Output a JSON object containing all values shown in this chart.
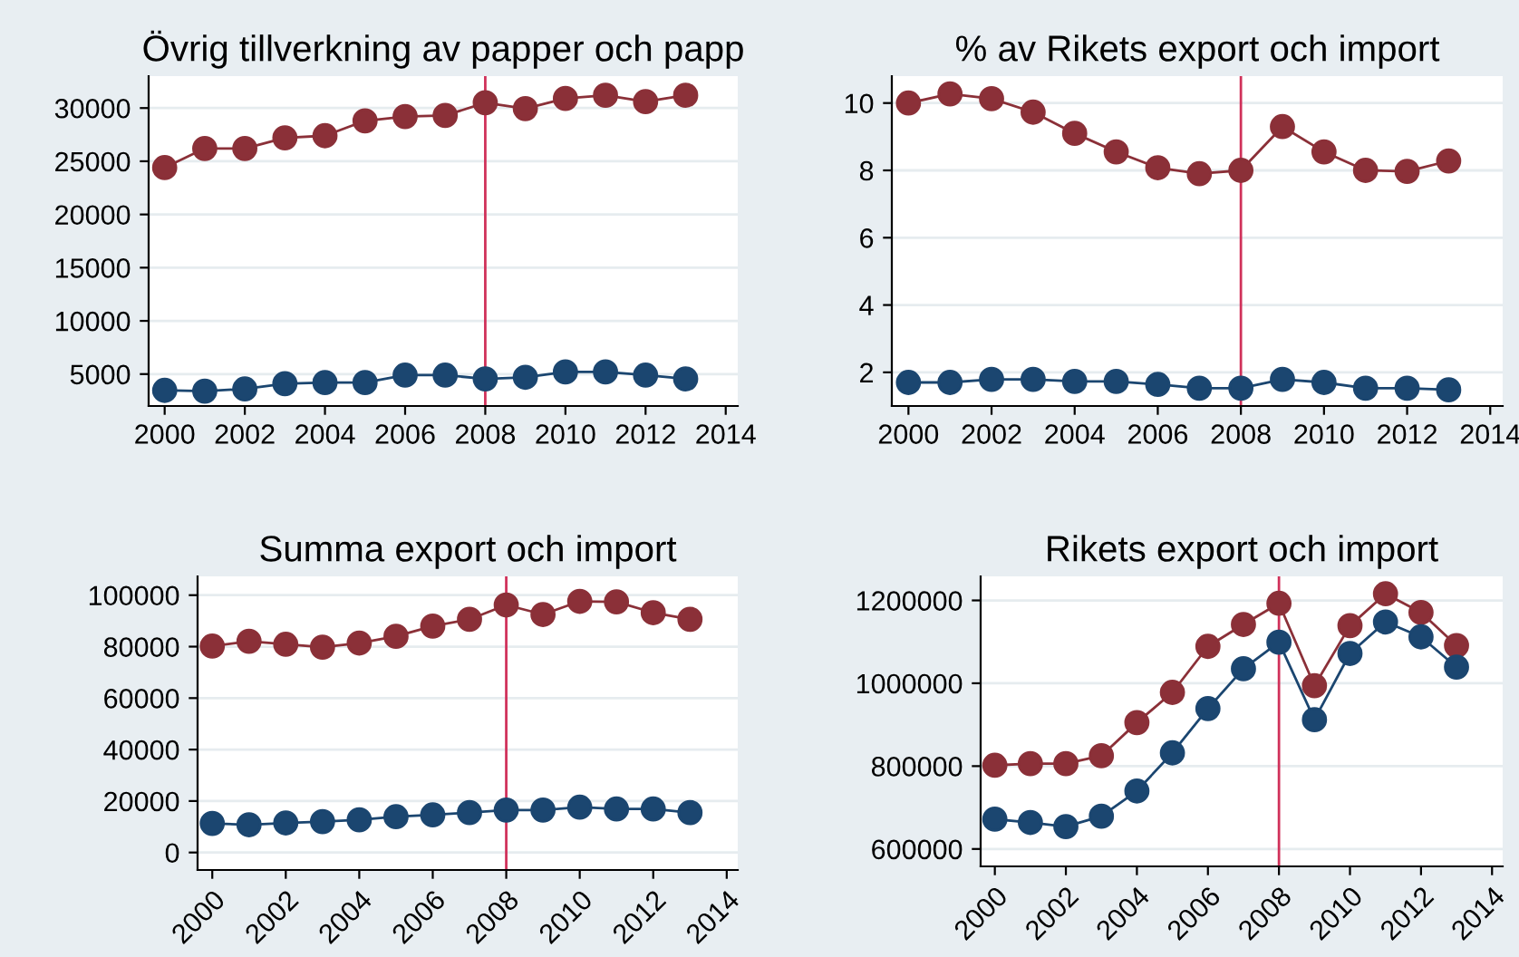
{
  "chart_data": [
    {
      "type": "line",
      "title": "Övrig tillverkning av papper och papp",
      "x": [
        2000,
        2001,
        2002,
        2003,
        2004,
        2005,
        2006,
        2007,
        2008,
        2009,
        2010,
        2011,
        2012,
        2013
      ],
      "series": [
        {
          "color": "#8b3038",
          "values": [
            24400,
            26200,
            26200,
            27200,
            27400,
            28800,
            29200,
            29300,
            30500,
            29950,
            30900,
            31200,
            30600,
            31200
          ]
        },
        {
          "color": "#1b4670",
          "values": [
            3470,
            3400,
            3600,
            4100,
            4200,
            4200,
            4900,
            4900,
            4550,
            4700,
            5200,
            5200,
            4900,
            4550
          ]
        }
      ],
      "xlim": [
        1999.6,
        2014.3
      ],
      "xticks": [
        2000,
        2002,
        2004,
        2006,
        2008,
        2010,
        2012,
        2014
      ],
      "ylim": [
        2000,
        33000
      ],
      "yticks": [
        5000,
        10000,
        15000,
        20000,
        25000,
        30000
      ],
      "ref_lines": [
        {
          "axis": "x",
          "value": 2008,
          "color": "#d0315a"
        }
      ],
      "grid": "y",
      "marker": "circle",
      "line_style": "solid",
      "legend": false
    },
    {
      "type": "line",
      "title": "% av Rikets export och import",
      "x": [
        2000,
        2001,
        2002,
        2003,
        2004,
        2005,
        2006,
        2007,
        2008,
        2009,
        2010,
        2011,
        2012,
        2013
      ],
      "series": [
        {
          "color": "#8b3038",
          "values": [
            10.0,
            10.27,
            10.13,
            9.73,
            9.1,
            8.55,
            8.08,
            7.9,
            8.0,
            9.3,
            8.55,
            8.0,
            7.97,
            8.28
          ]
        },
        {
          "color": "#1b4670",
          "values": [
            1.7,
            1.7,
            1.79,
            1.79,
            1.73,
            1.73,
            1.64,
            1.53,
            1.53,
            1.79,
            1.7,
            1.53,
            1.53,
            1.48
          ]
        }
      ],
      "xlim": [
        1999.6,
        2014.3
      ],
      "xticks": [
        2000,
        2002,
        2004,
        2006,
        2008,
        2010,
        2012,
        2014
      ],
      "ylim": [
        1.0,
        10.8
      ],
      "yticks": [
        2,
        4,
        6,
        8,
        10
      ],
      "ref_lines": [
        {
          "axis": "x",
          "value": 2008,
          "color": "#d0315a"
        }
      ],
      "grid": "y",
      "marker": "circle",
      "line_style": "solid",
      "legend": false
    },
    {
      "type": "line",
      "title": "Summa export och import",
      "x": [
        2000,
        2001,
        2002,
        2003,
        2004,
        2005,
        2006,
        2007,
        2008,
        2009,
        2010,
        2011,
        2012,
        2013
      ],
      "series": [
        {
          "color": "#8b3038",
          "values": [
            80200,
            82100,
            80900,
            79800,
            81400,
            84000,
            88000,
            90600,
            96200,
            92500,
            97600,
            97400,
            93200,
            90600
          ]
        },
        {
          "color": "#1b4670",
          "values": [
            11300,
            10800,
            11500,
            12000,
            12700,
            13900,
            14600,
            15500,
            16500,
            16500,
            17600,
            16900,
            16900,
            15500
          ]
        }
      ],
      "xlim": [
        1999.6,
        2014.3
      ],
      "xticks": [
        2000,
        2002,
        2004,
        2006,
        2008,
        2010,
        2012,
        2014
      ],
      "ylim": [
        -6800,
        107300
      ],
      "yticks": [
        0,
        20000,
        40000,
        60000,
        80000,
        100000
      ],
      "ref_lines": [
        {
          "axis": "x",
          "value": 2008,
          "color": "#d0315a"
        }
      ],
      "grid": "y",
      "marker": "circle",
      "line_style": "solid",
      "legend": false
    },
    {
      "type": "line",
      "title": "Rikets export och import",
      "x": [
        2000,
        2001,
        2002,
        2003,
        2004,
        2005,
        2006,
        2007,
        2008,
        2009,
        2010,
        2011,
        2012,
        2013
      ],
      "series": [
        {
          "color": "#8b3038",
          "values": [
            802000,
            806000,
            806000,
            825000,
            905000,
            978000,
            1089000,
            1142000,
            1193000,
            994000,
            1139000,
            1216000,
            1171000,
            1091000
          ]
        },
        {
          "color": "#1b4670",
          "values": [
            672000,
            664000,
            654000,
            679000,
            740000,
            832000,
            939000,
            1035000,
            1099000,
            912000,
            1072000,
            1148000,
            1112000,
            1039000
          ]
        }
      ],
      "xlim": [
        1999.6,
        2014.3
      ],
      "xticks": [
        2000,
        2002,
        2004,
        2006,
        2008,
        2010,
        2012,
        2014
      ],
      "ylim": [
        558000,
        1258000
      ],
      "yticks": [
        600000,
        800000,
        1000000,
        1200000
      ],
      "ref_lines": [
        {
          "axis": "x",
          "value": 2008,
          "color": "#d0315a"
        }
      ],
      "grid": "y",
      "marker": "circle",
      "line_style": "solid",
      "legend": false
    }
  ]
}
